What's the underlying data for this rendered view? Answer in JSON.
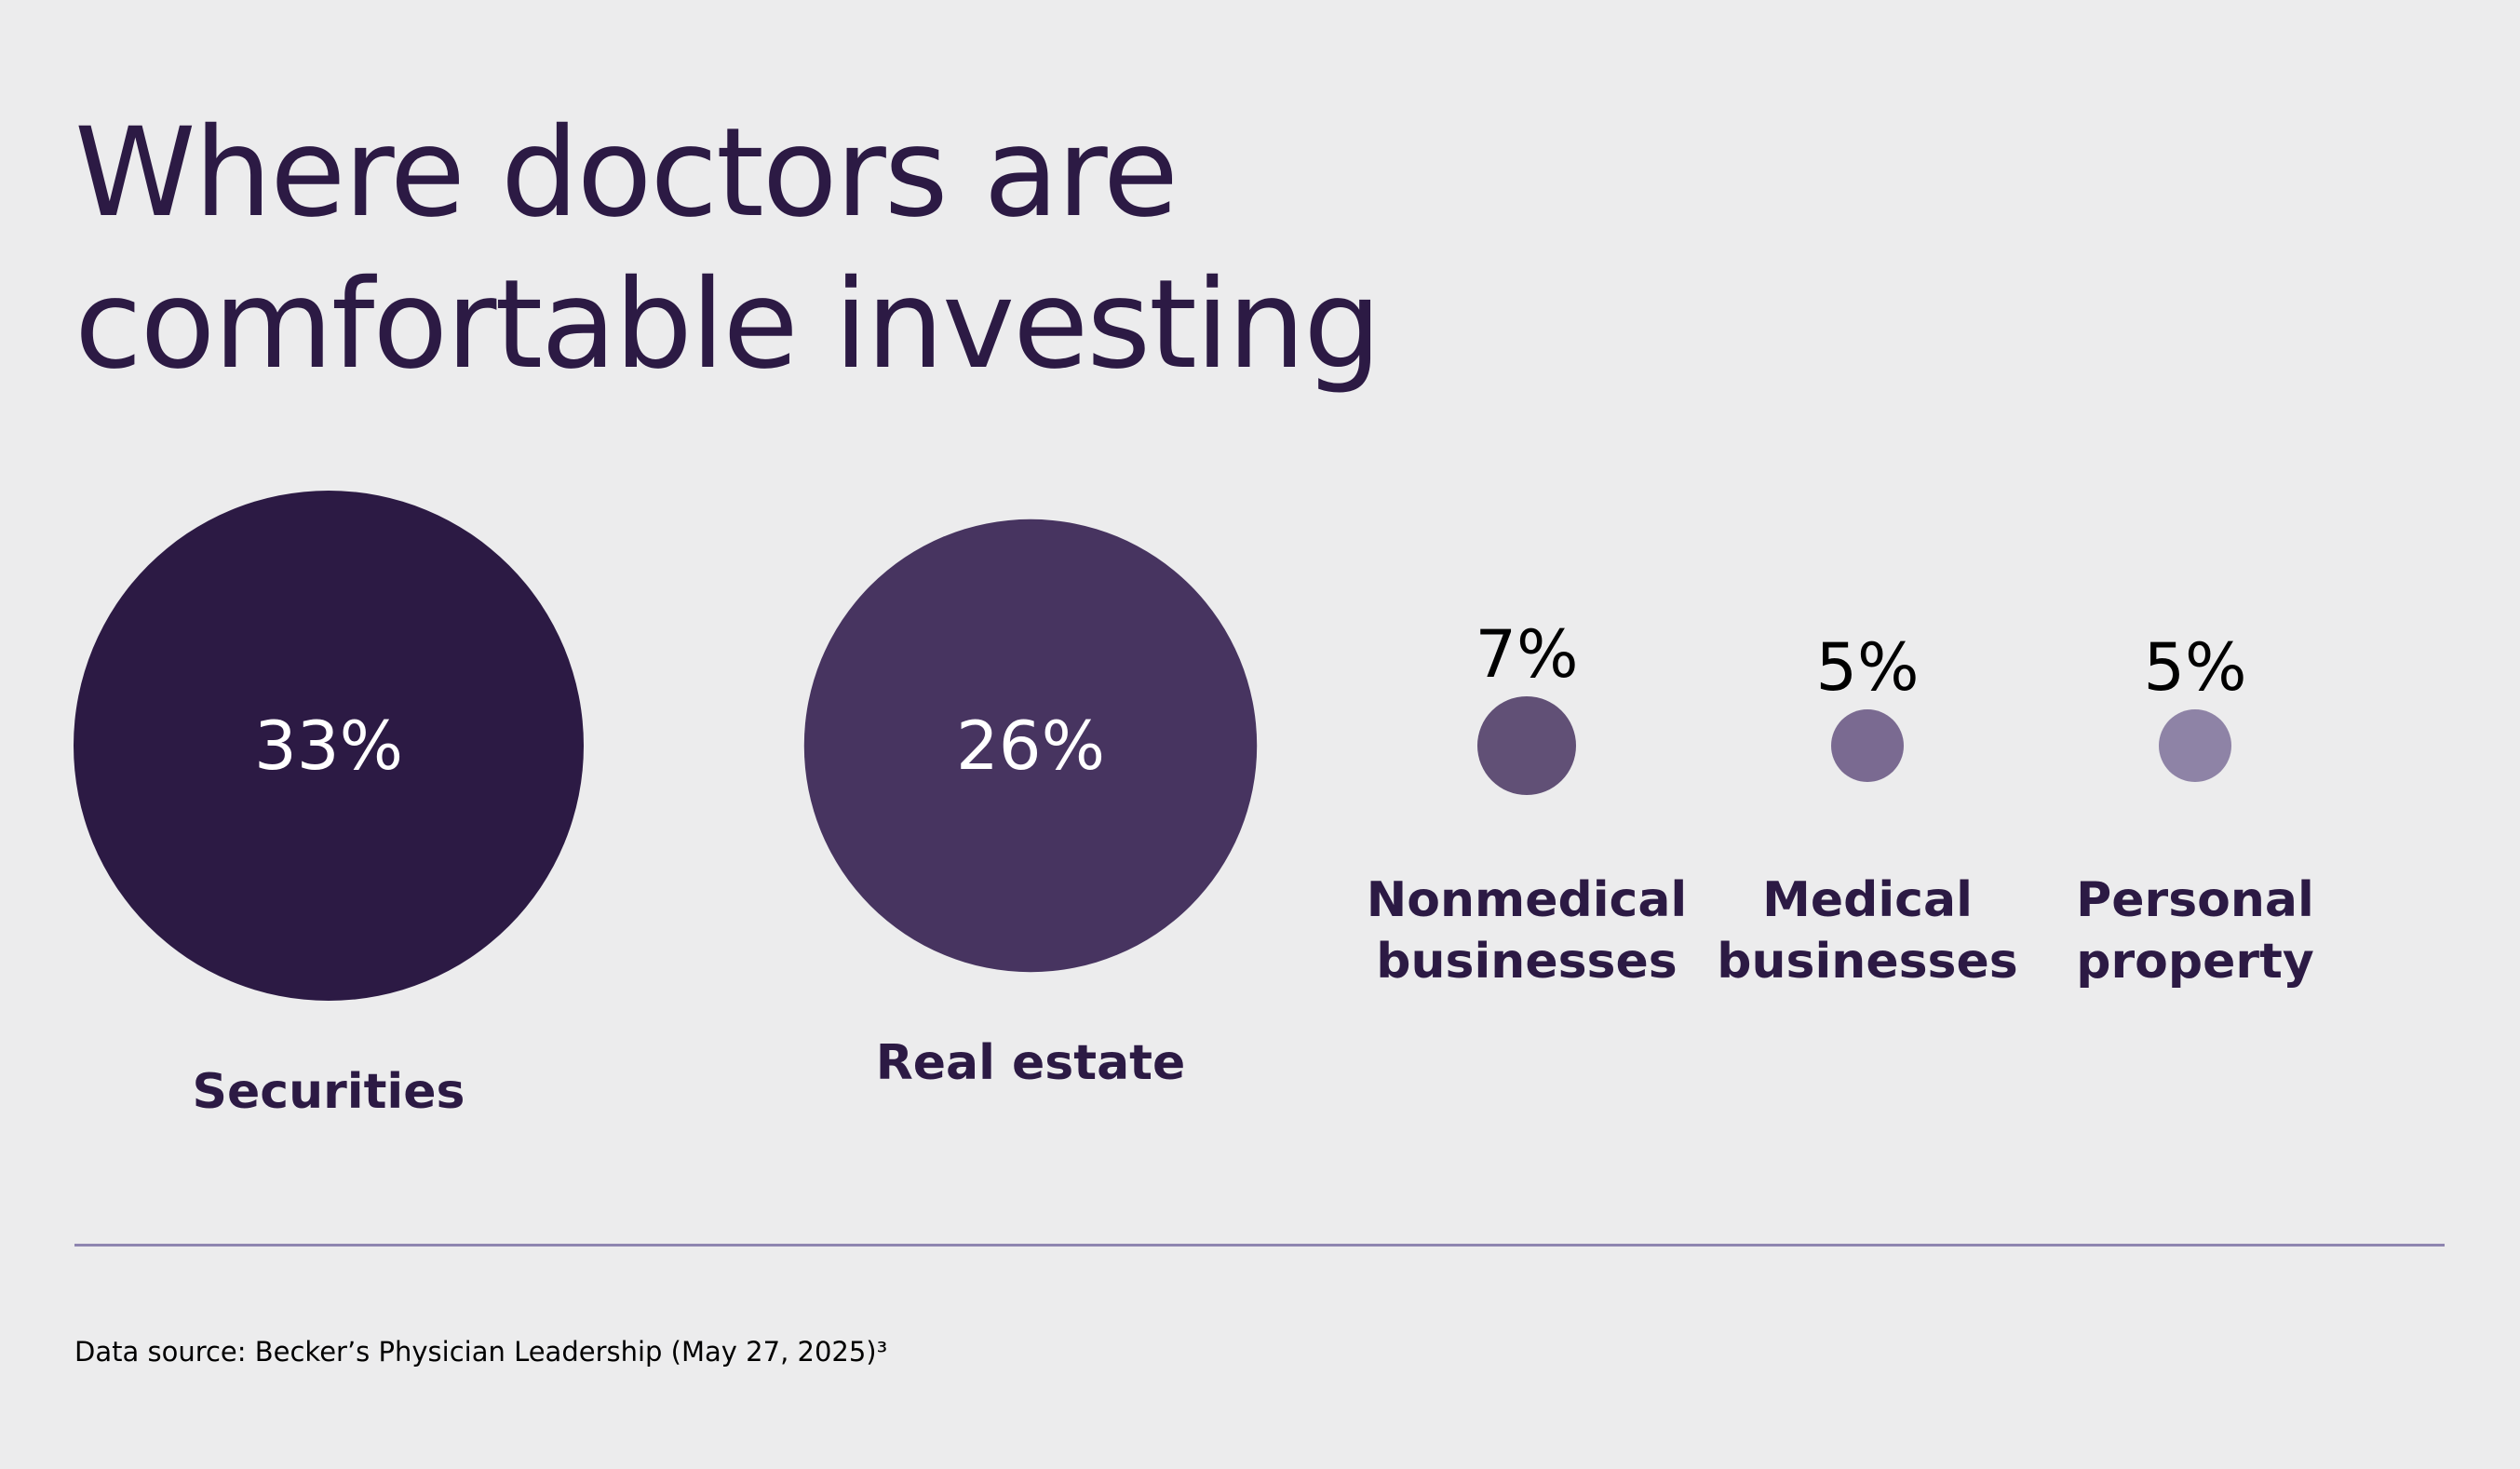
{
  "chart_data": {
    "type": "bubble",
    "title_lines": [
      "Where doctors are",
      "comfortable investing"
    ],
    "unit": "%",
    "items": [
      {
        "label_lines": [
          "Securities"
        ],
        "value": 33,
        "display": "33%",
        "color": "#2c1a44"
      },
      {
        "label_lines": [
          "Real estate"
        ],
        "value": 26,
        "display": "26%",
        "color": "#473460"
      },
      {
        "label_lines": [
          "Nonmedical",
          "businesses"
        ],
        "value": 7,
        "display": "7%",
        "color": "#615076"
      },
      {
        "label_lines": [
          "Medical",
          "businesses"
        ],
        "value": 5,
        "display": "5%",
        "color": "#7a6a91"
      },
      {
        "label_lines": [
          "Personal",
          "property"
        ],
        "value": 5,
        "display": "5%",
        "color": "#8e83a6"
      }
    ]
  },
  "footer": {
    "source": "Data source: Becker’s Physician Leadership (May 27, 2025)³"
  },
  "colors": {
    "background": "#ececed",
    "title": "#2c1a44",
    "divider": "#8e85b0"
  }
}
